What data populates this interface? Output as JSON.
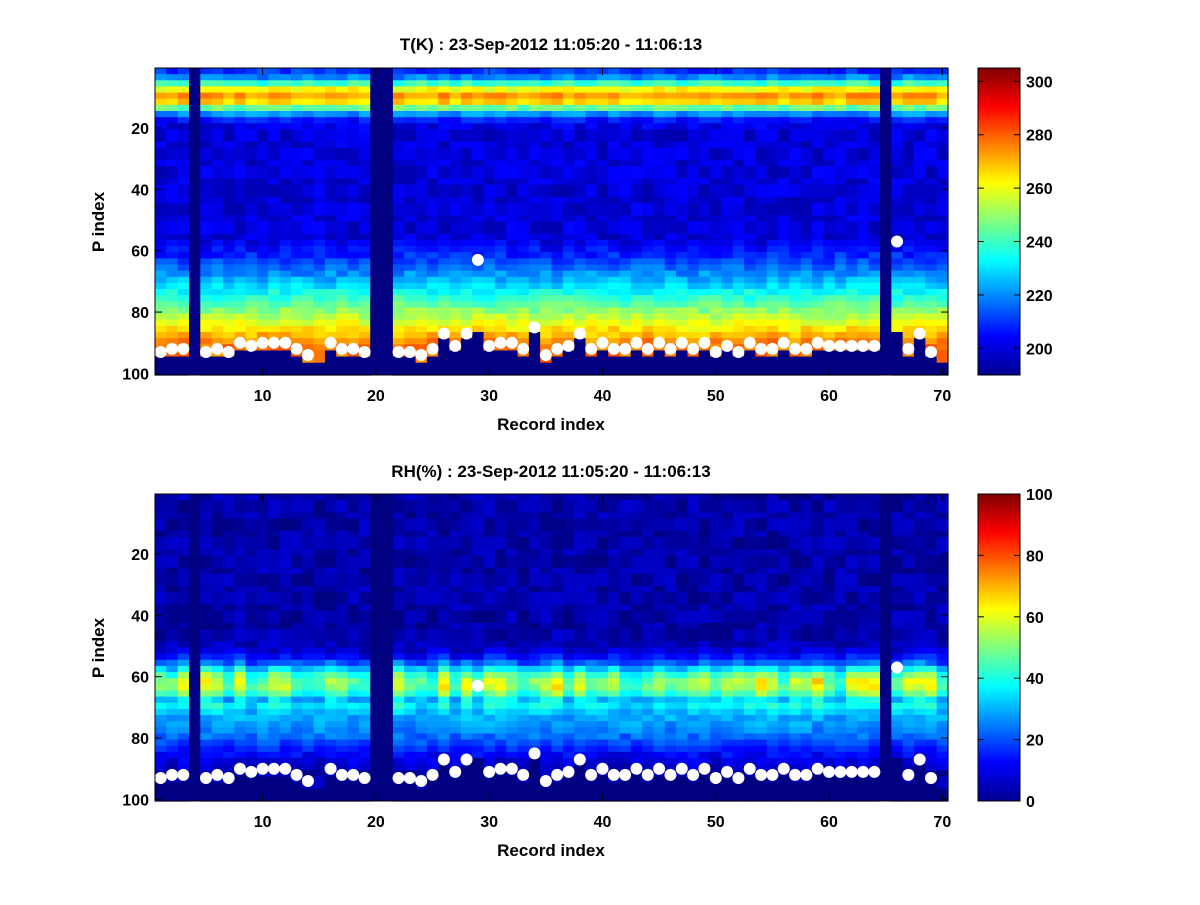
{
  "chart_data": [
    {
      "type": "heatmap",
      "title": "T(K) : 23-Sep-2012 11:05:20 - 11:06:13",
      "xlabel": "Record index",
      "ylabel": "P index",
      "xlim": [
        1,
        70
      ],
      "ylim": [
        100,
        1
      ],
      "y_reversed": true,
      "x_ticks": [
        10,
        20,
        30,
        40,
        50,
        60,
        70
      ],
      "y_ticks": [
        20,
        40,
        60,
        80,
        100
      ],
      "colormap": "jet",
      "clim": [
        190,
        305
      ],
      "colorbar_ticks": [
        200,
        220,
        240,
        260,
        280,
        300
      ],
      "missing_records": [
        4,
        20,
        21,
        65
      ],
      "surface_points": {
        "x": [
          1,
          2,
          3,
          5,
          6,
          7,
          8,
          9,
          10,
          11,
          12,
          13,
          14,
          16,
          17,
          18,
          19,
          22,
          23,
          24,
          25,
          26,
          27,
          28,
          29,
          30,
          31,
          32,
          33,
          34,
          35,
          36,
          37,
          38,
          39,
          40,
          41,
          42,
          43,
          44,
          45,
          46,
          47,
          48,
          49,
          50,
          51,
          52,
          53,
          54,
          55,
          56,
          57,
          58,
          59,
          60,
          61,
          62,
          63,
          64,
          66,
          67,
          68,
          69
        ],
        "y": [
          93,
          92,
          92,
          93,
          92,
          93,
          90,
          91,
          90,
          90,
          90,
          92,
          94,
          90,
          92,
          92,
          93,
          93,
          93,
          94,
          92,
          87,
          91,
          87,
          63,
          91,
          90,
          90,
          92,
          85,
          94,
          92,
          91,
          87,
          92,
          90,
          92,
          92,
          90,
          92,
          90,
          92,
          90,
          92,
          90,
          93,
          91,
          93,
          90,
          92,
          92,
          90,
          92,
          92,
          90,
          91,
          91,
          91,
          91,
          91,
          57,
          92,
          87,
          93
        ]
      },
      "profile": {
        "warm_band_p": 10,
        "cold_core_p": [
          35,
          55
        ],
        "warm_surface_p": [
          80,
          95
        ]
      }
    },
    {
      "type": "heatmap",
      "title": "RH(%) : 23-Sep-2012 11:05:20 - 11:06:13",
      "xlabel": "Record index",
      "ylabel": "P index",
      "xlim": [
        1,
        70
      ],
      "ylim": [
        100,
        1
      ],
      "y_reversed": true,
      "x_ticks": [
        10,
        20,
        30,
        40,
        50,
        60,
        70
      ],
      "y_ticks": [
        20,
        40,
        60,
        80,
        100
      ],
      "colormap": "jet",
      "clim": [
        0,
        100
      ],
      "colorbar_ticks": [
        0,
        20,
        40,
        60,
        80,
        100
      ],
      "missing_records": [
        4,
        20,
        21,
        65
      ],
      "surface_points": {
        "x": [
          1,
          2,
          3,
          5,
          6,
          7,
          8,
          9,
          10,
          11,
          12,
          13,
          14,
          16,
          17,
          18,
          19,
          22,
          23,
          24,
          25,
          26,
          27,
          28,
          29,
          30,
          31,
          32,
          33,
          34,
          35,
          36,
          37,
          38,
          39,
          40,
          41,
          42,
          43,
          44,
          45,
          46,
          47,
          48,
          49,
          50,
          51,
          52,
          53,
          54,
          55,
          56,
          57,
          58,
          59,
          60,
          61,
          62,
          63,
          64,
          66,
          67,
          68,
          69
        ],
        "y": [
          93,
          92,
          92,
          93,
          92,
          93,
          90,
          91,
          90,
          90,
          90,
          92,
          94,
          90,
          92,
          92,
          93,
          93,
          93,
          94,
          92,
          87,
          91,
          87,
          63,
          91,
          90,
          90,
          92,
          85,
          94,
          92,
          91,
          87,
          92,
          90,
          92,
          92,
          90,
          92,
          90,
          92,
          90,
          92,
          90,
          93,
          91,
          93,
          90,
          92,
          92,
          90,
          92,
          92,
          90,
          91,
          91,
          91,
          91,
          91,
          57,
          92,
          87,
          93
        ]
      },
      "profile": {
        "moist_band_p": [
          55,
          70
        ],
        "dry_above_p": 45
      }
    }
  ]
}
